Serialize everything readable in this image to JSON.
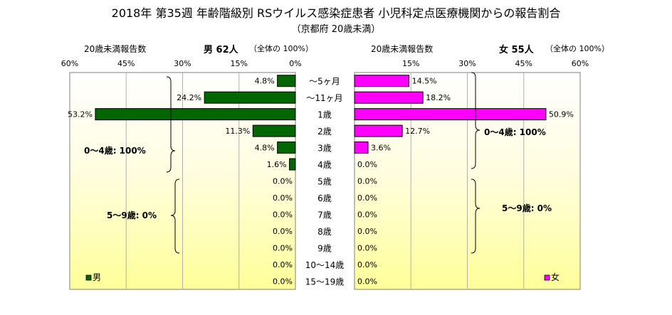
{
  "chart_data": {
    "type": "bar",
    "title": "2018年 第35週 年齢階級別 RSウイルス感染症患者 小児科定点医療機関からの報告割合",
    "subtitle": "（京都府 20歳未満）",
    "categories": [
      "～5ヶ月",
      "～11ヶ月",
      "1歳",
      "2歳",
      "3歳",
      "4歳",
      "5歳",
      "6歳",
      "7歳",
      "8歳",
      "9歳",
      "10～14歳",
      "15～19歳"
    ],
    "series": [
      {
        "name": "男",
        "color": "#006600",
        "values": [
          4.8,
          24.2,
          53.2,
          11.3,
          4.8,
          1.6,
          0.0,
          0.0,
          0.0,
          0.0,
          0.0,
          0.0,
          0.0
        ],
        "labels": [
          "4.8%",
          "24.2%",
          "53.2%",
          "11.3%",
          "4.8%",
          "1.6%",
          "0.0%",
          "0.0%",
          "0.0%",
          "0.0%",
          "0.0%",
          "0.0%",
          "0.0%"
        ]
      },
      {
        "name": "女",
        "color": "#ff00ff",
        "values": [
          14.5,
          18.2,
          50.9,
          12.7,
          3.6,
          0.0,
          0.0,
          0.0,
          0.0,
          0.0,
          0.0,
          0.0,
          0.0
        ],
        "labels": [
          "14.5%",
          "18.2%",
          "50.9%",
          "12.7%",
          "3.6%",
          "0.0%",
          "0.0%",
          "0.0%",
          "0.0%",
          "0.0%",
          "0.0%",
          "0.0%",
          "0.0%"
        ]
      }
    ],
    "xlim": [
      0,
      60
    ],
    "ticks": [
      "60%",
      "45%",
      "30%",
      "15%",
      "0%",
      "15%",
      "30%",
      "45%",
      "60%"
    ],
    "grid": true,
    "left_panel": {
      "header_left": "20歳未満報告数",
      "header_right": "男 62人",
      "header_note": "（全体の 100%）",
      "group1": "0～4歳: 100%",
      "group2": "5～9歳: 0%",
      "legend": "男"
    },
    "right_panel": {
      "header_left": "20歳未満報告数",
      "header_right": "女 55人",
      "header_note": "（全体の 100%）",
      "group1": "0～4歳: 100%",
      "group2": "5～9歳: 0%",
      "legend": "女"
    }
  }
}
